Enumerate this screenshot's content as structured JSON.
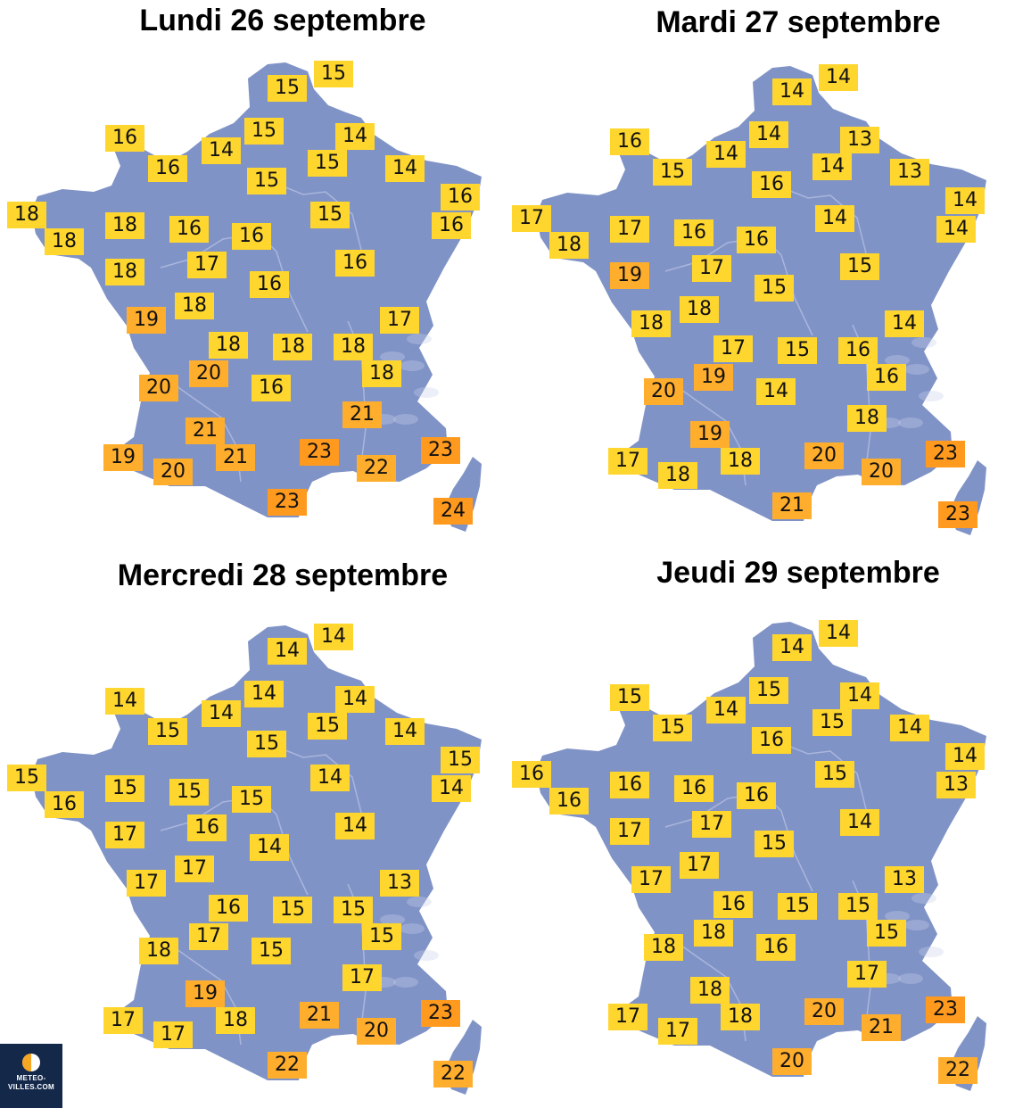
{
  "colors": {
    "land": "#8093c6",
    "river": "#a9b6dc",
    "relief": "#c8d1ea",
    "temp_yellow": "#ffd62e",
    "temp_orange": "#ffad2d",
    "temp_dark_orange": "#ff9a1e",
    "logo_bg": "#14284a",
    "logo_half": "#f5a623"
  },
  "legend_scale": {
    "yellow_max": 18,
    "orange_max": 22
  },
  "logo": {
    "line1": "METEO-",
    "line2": "VILLES.COM",
    "icon": "half-sun-icon"
  },
  "panels": [
    {
      "title": "Lundi 26 septembre",
      "temps": [
        {
          "city": "lille",
          "value": "15"
        },
        {
          "city": "dunkerque",
          "value": "15"
        },
        {
          "city": "cherbourg",
          "value": "16"
        },
        {
          "city": "caen",
          "value": "16"
        },
        {
          "city": "rouen",
          "value": "14"
        },
        {
          "city": "amiens",
          "value": "15"
        },
        {
          "city": "reims",
          "value": "15"
        },
        {
          "city": "charleville",
          "value": "14"
        },
        {
          "city": "metz",
          "value": "14"
        },
        {
          "city": "paris",
          "value": "15"
        },
        {
          "city": "strasbourg",
          "value": "16"
        },
        {
          "city": "colmar",
          "value": "16"
        },
        {
          "city": "brest",
          "value": "18"
        },
        {
          "city": "quimper",
          "value": "18"
        },
        {
          "city": "rennes",
          "value": "18"
        },
        {
          "city": "le-mans",
          "value": "16"
        },
        {
          "city": "orleans",
          "value": "16"
        },
        {
          "city": "troyes",
          "value": "15"
        },
        {
          "city": "dijon",
          "value": "16"
        },
        {
          "city": "nantes",
          "value": "18"
        },
        {
          "city": "tours",
          "value": "17"
        },
        {
          "city": "bourges",
          "value": "16"
        },
        {
          "city": "poitiers",
          "value": "18"
        },
        {
          "city": "la-rochelle",
          "value": "19"
        },
        {
          "city": "besancon",
          "value": "17"
        },
        {
          "city": "limoges",
          "value": "18"
        },
        {
          "city": "clermont",
          "value": "18"
        },
        {
          "city": "lyon",
          "value": "18"
        },
        {
          "city": "bordeaux",
          "value": "20"
        },
        {
          "city": "brive",
          "value": "20"
        },
        {
          "city": "aurillac",
          "value": "16"
        },
        {
          "city": "grenoble",
          "value": "18"
        },
        {
          "city": "montelimar",
          "value": "21"
        },
        {
          "city": "agen",
          "value": "21"
        },
        {
          "city": "biarritz",
          "value": "19"
        },
        {
          "city": "pau",
          "value": "20"
        },
        {
          "city": "toulouse",
          "value": "21"
        },
        {
          "city": "montpellier",
          "value": "23"
        },
        {
          "city": "marseille",
          "value": "22"
        },
        {
          "city": "nice",
          "value": "23"
        },
        {
          "city": "perpignan",
          "value": "23"
        },
        {
          "city": "ajaccio",
          "value": "24"
        }
      ]
    },
    {
      "title": "Mardi 27 septembre",
      "temps": [
        {
          "city": "lille",
          "value": "14"
        },
        {
          "city": "dunkerque",
          "value": "14"
        },
        {
          "city": "cherbourg",
          "value": "16"
        },
        {
          "city": "caen",
          "value": "15"
        },
        {
          "city": "rouen",
          "value": "14"
        },
        {
          "city": "amiens",
          "value": "14"
        },
        {
          "city": "reims",
          "value": "14"
        },
        {
          "city": "charleville",
          "value": "13"
        },
        {
          "city": "metz",
          "value": "13"
        },
        {
          "city": "paris",
          "value": "16"
        },
        {
          "city": "strasbourg",
          "value": "14"
        },
        {
          "city": "colmar",
          "value": "14"
        },
        {
          "city": "brest",
          "value": "17"
        },
        {
          "city": "quimper",
          "value": "18"
        },
        {
          "city": "rennes",
          "value": "17"
        },
        {
          "city": "le-mans",
          "value": "16"
        },
        {
          "city": "orleans",
          "value": "16"
        },
        {
          "city": "troyes",
          "value": "14"
        },
        {
          "city": "dijon",
          "value": "15"
        },
        {
          "city": "nantes",
          "value": "19"
        },
        {
          "city": "tours",
          "value": "17"
        },
        {
          "city": "bourges",
          "value": "15"
        },
        {
          "city": "poitiers",
          "value": "18"
        },
        {
          "city": "la-rochelle",
          "value": "18"
        },
        {
          "city": "besancon",
          "value": "14"
        },
        {
          "city": "limoges",
          "value": "17"
        },
        {
          "city": "clermont",
          "value": "15"
        },
        {
          "city": "lyon",
          "value": "16"
        },
        {
          "city": "bordeaux",
          "value": "20"
        },
        {
          "city": "brive",
          "value": "19"
        },
        {
          "city": "aurillac",
          "value": "14"
        },
        {
          "city": "grenoble",
          "value": "16"
        },
        {
          "city": "montelimar",
          "value": "18"
        },
        {
          "city": "agen",
          "value": "19"
        },
        {
          "city": "biarritz",
          "value": "17"
        },
        {
          "city": "pau",
          "value": "18"
        },
        {
          "city": "toulouse",
          "value": "18"
        },
        {
          "city": "montpellier",
          "value": "20"
        },
        {
          "city": "marseille",
          "value": "20"
        },
        {
          "city": "nice",
          "value": "23"
        },
        {
          "city": "perpignan",
          "value": "21"
        },
        {
          "city": "ajaccio",
          "value": "23"
        }
      ]
    },
    {
      "title": "Mercredi 28 septembre",
      "temps": [
        {
          "city": "lille",
          "value": "14"
        },
        {
          "city": "dunkerque",
          "value": "14"
        },
        {
          "city": "cherbourg",
          "value": "14"
        },
        {
          "city": "caen",
          "value": "15"
        },
        {
          "city": "rouen",
          "value": "14"
        },
        {
          "city": "amiens",
          "value": "14"
        },
        {
          "city": "reims",
          "value": "15"
        },
        {
          "city": "charleville",
          "value": "14"
        },
        {
          "city": "metz",
          "value": "14"
        },
        {
          "city": "paris",
          "value": "15"
        },
        {
          "city": "strasbourg",
          "value": "15"
        },
        {
          "city": "colmar",
          "value": "14"
        },
        {
          "city": "brest",
          "value": "15"
        },
        {
          "city": "quimper",
          "value": "16"
        },
        {
          "city": "rennes",
          "value": "15"
        },
        {
          "city": "le-mans",
          "value": "15"
        },
        {
          "city": "orleans",
          "value": "15"
        },
        {
          "city": "troyes",
          "value": "14"
        },
        {
          "city": "dijon",
          "value": "14"
        },
        {
          "city": "nantes",
          "value": "17"
        },
        {
          "city": "tours",
          "value": "16"
        },
        {
          "city": "bourges",
          "value": "14"
        },
        {
          "city": "poitiers",
          "value": "17"
        },
        {
          "city": "la-rochelle",
          "value": "17"
        },
        {
          "city": "besancon",
          "value": "13"
        },
        {
          "city": "limoges",
          "value": "16"
        },
        {
          "city": "clermont",
          "value": "15"
        },
        {
          "city": "lyon",
          "value": "15"
        },
        {
          "city": "bordeaux",
          "value": "18"
        },
        {
          "city": "brive",
          "value": "17"
        },
        {
          "city": "aurillac",
          "value": "15"
        },
        {
          "city": "grenoble",
          "value": "15"
        },
        {
          "city": "montelimar",
          "value": "17"
        },
        {
          "city": "agen",
          "value": "19"
        },
        {
          "city": "biarritz",
          "value": "17"
        },
        {
          "city": "pau",
          "value": "17"
        },
        {
          "city": "toulouse",
          "value": "18"
        },
        {
          "city": "montpellier",
          "value": "21"
        },
        {
          "city": "marseille",
          "value": "20"
        },
        {
          "city": "nice",
          "value": "23"
        },
        {
          "city": "perpignan",
          "value": "22"
        },
        {
          "city": "ajaccio",
          "value": "22"
        }
      ]
    },
    {
      "title": "Jeudi 29 septembre",
      "temps": [
        {
          "city": "lille",
          "value": "14"
        },
        {
          "city": "dunkerque",
          "value": "14"
        },
        {
          "city": "cherbourg",
          "value": "15"
        },
        {
          "city": "caen",
          "value": "15"
        },
        {
          "city": "rouen",
          "value": "14"
        },
        {
          "city": "amiens",
          "value": "15"
        },
        {
          "city": "reims",
          "value": "15"
        },
        {
          "city": "charleville",
          "value": "14"
        },
        {
          "city": "metz",
          "value": "14"
        },
        {
          "city": "paris",
          "value": "16"
        },
        {
          "city": "strasbourg",
          "value": "14"
        },
        {
          "city": "colmar",
          "value": "13"
        },
        {
          "city": "brest",
          "value": "16"
        },
        {
          "city": "quimper",
          "value": "16"
        },
        {
          "city": "rennes",
          "value": "16"
        },
        {
          "city": "le-mans",
          "value": "16"
        },
        {
          "city": "orleans",
          "value": "16"
        },
        {
          "city": "troyes",
          "value": "15"
        },
        {
          "city": "dijon",
          "value": "14"
        },
        {
          "city": "nantes",
          "value": "17"
        },
        {
          "city": "tours",
          "value": "17"
        },
        {
          "city": "bourges",
          "value": "15"
        },
        {
          "city": "poitiers",
          "value": "17"
        },
        {
          "city": "la-rochelle",
          "value": "17"
        },
        {
          "city": "besancon",
          "value": "13"
        },
        {
          "city": "limoges",
          "value": "16"
        },
        {
          "city": "clermont",
          "value": "15"
        },
        {
          "city": "lyon",
          "value": "15"
        },
        {
          "city": "bordeaux",
          "value": "18"
        },
        {
          "city": "brive",
          "value": "18"
        },
        {
          "city": "aurillac",
          "value": "16"
        },
        {
          "city": "grenoble",
          "value": "15"
        },
        {
          "city": "montelimar",
          "value": "17"
        },
        {
          "city": "agen",
          "value": "18"
        },
        {
          "city": "biarritz",
          "value": "17"
        },
        {
          "city": "pau",
          "value": "17"
        },
        {
          "city": "toulouse",
          "value": "18"
        },
        {
          "city": "montpellier",
          "value": "20"
        },
        {
          "city": "marseille",
          "value": "21"
        },
        {
          "city": "nice",
          "value": "23"
        },
        {
          "city": "perpignan",
          "value": "20"
        },
        {
          "city": "ajaccio",
          "value": "22"
        }
      ]
    }
  ]
}
